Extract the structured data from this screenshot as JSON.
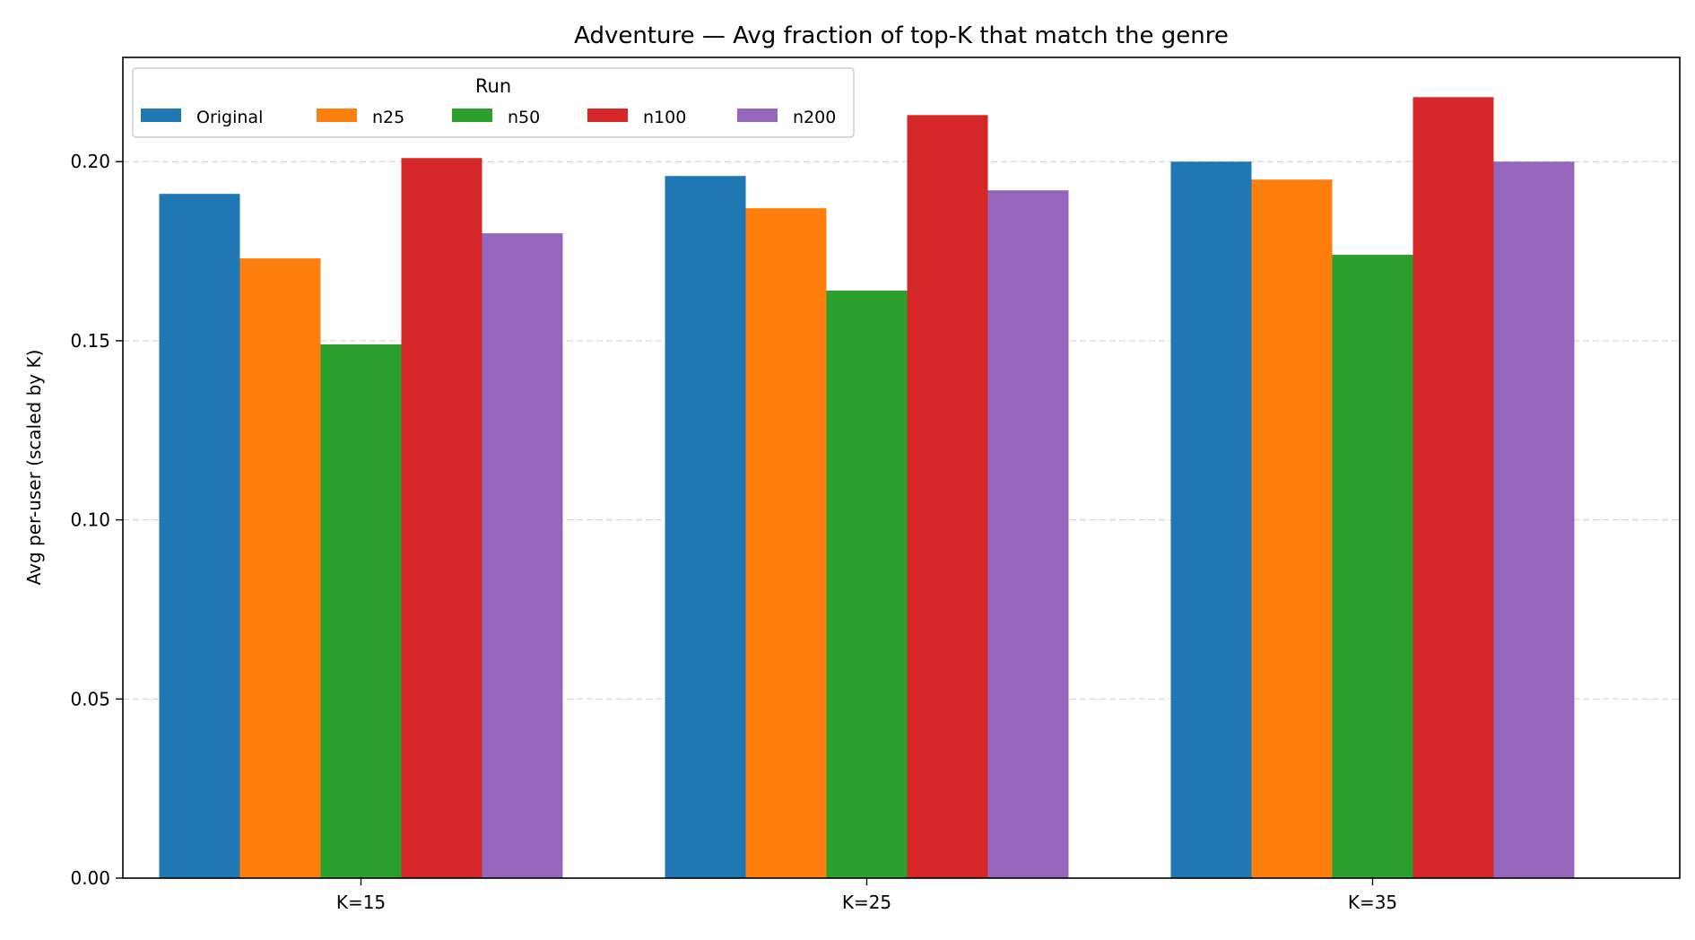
{
  "chart_data": {
    "type": "bar",
    "title": "Adventure — Avg fraction of top-K that match the genre",
    "xlabel": "",
    "ylabel": "Avg per-user (scaled by K)",
    "categories": [
      "K=15",
      "K=25",
      "K=35"
    ],
    "series": [
      {
        "name": "Original",
        "color": "#1f77b4",
        "values": [
          0.191,
          0.196,
          0.2
        ]
      },
      {
        "name": "n25",
        "color": "#ff7f0e",
        "values": [
          0.173,
          0.187,
          0.195
        ]
      },
      {
        "name": "n50",
        "color": "#2ca02c",
        "values": [
          0.149,
          0.164,
          0.174
        ]
      },
      {
        "name": "n100",
        "color": "#d62728",
        "values": [
          0.201,
          0.213,
          0.218
        ]
      },
      {
        "name": "n200",
        "color": "#9467bd",
        "values": [
          0.18,
          0.192,
          0.2
        ]
      }
    ],
    "ylim": [
      0,
      0.2291
    ],
    "yticks": [
      "0.00",
      "0.05",
      "0.10",
      "0.15",
      "0.20"
    ],
    "grid": "y dashed",
    "legend": {
      "title": "Run",
      "placement": "top-left",
      "ncol": 5
    }
  }
}
